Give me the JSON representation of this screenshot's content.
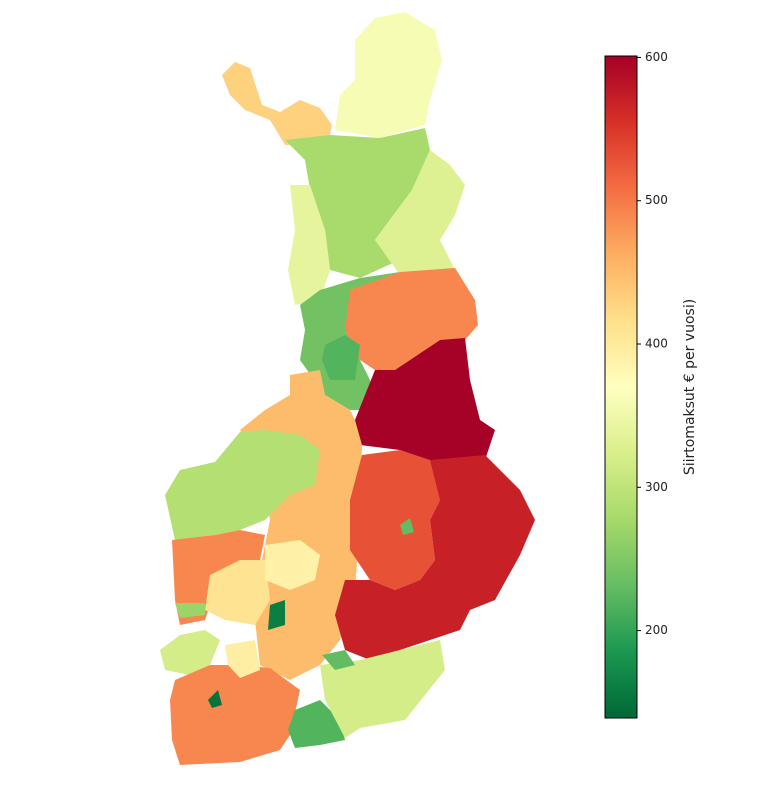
{
  "chart_data": {
    "type": "choropleth",
    "values": [
      360,
      430,
      280,
      330,
      340,
      240,
      490,
      600,
      450,
      290,
      530,
      570,
      490,
      410,
      390,
      320,
      490,
      395,
      220,
      320,
      160,
      220,
      150,
      230,
      230,
      270
    ],
    "colormap": [
      "#006837",
      "#1a9850",
      "#66bd63",
      "#a6d96a",
      "#d9ef8b",
      "#ffffbf",
      "#fee08b",
      "#fdae61",
      "#f46d43",
      "#d73027",
      "#a50026"
    ],
    "colorbar": {
      "label": "Siirtomaksut € per vuosi)",
      "lim": [
        139,
        601
      ],
      "ticks": [
        200,
        300,
        400,
        500,
        600
      ]
    }
  }
}
